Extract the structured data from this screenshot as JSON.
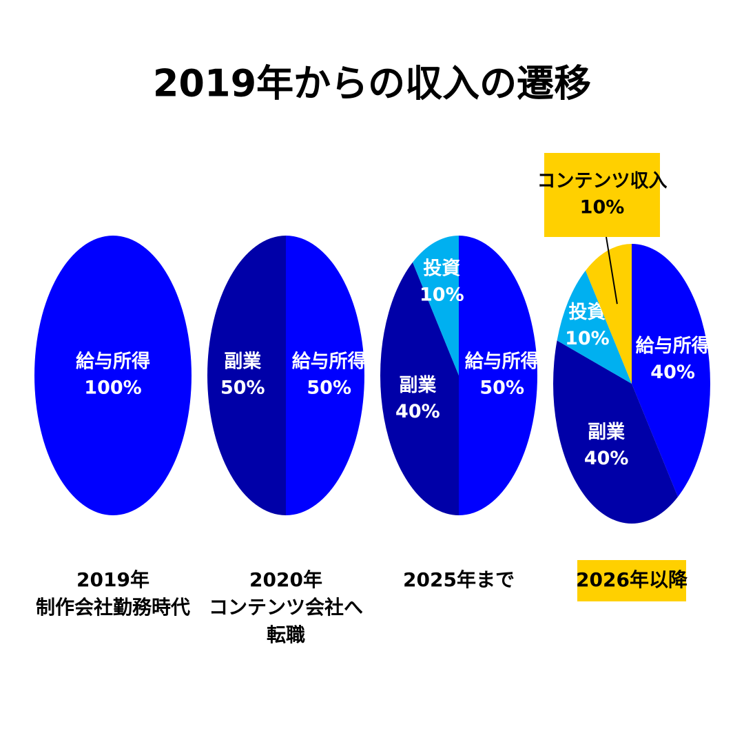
{
  "title": "2019年からの収入の遷移",
  "chart_data": [
    {
      "type": "pie",
      "categories": [
        "給与所得"
      ],
      "values": [
        100
      ],
      "value_labels": [
        "100%"
      ],
      "colors": [
        "#0000ff"
      ],
      "caption": [
        "2019年",
        "制作会社勤務時代"
      ]
    },
    {
      "type": "pie",
      "categories": [
        "給与所得",
        "副業"
      ],
      "values": [
        50,
        50
      ],
      "value_labels": [
        "50%",
        "50%"
      ],
      "colors": [
        "#0000ff",
        "#0000a8"
      ],
      "caption": [
        "2020年",
        "コンテンツ会社へ",
        "転職"
      ]
    },
    {
      "type": "pie",
      "categories": [
        "給与所得",
        "副業",
        "投資"
      ],
      "values": [
        50,
        40,
        10
      ],
      "value_labels": [
        "50%",
        "40%",
        "10%"
      ],
      "colors": [
        "#0000ff",
        "#0000a8",
        "#00b0f0"
      ],
      "caption": [
        "2025年まで"
      ]
    },
    {
      "type": "pie",
      "categories": [
        "給与所得",
        "副業",
        "投資",
        "コンテンツ収入"
      ],
      "values": [
        40,
        40,
        10,
        10
      ],
      "value_labels": [
        "40%",
        "40%",
        "10%",
        "10%"
      ],
      "colors": [
        "#0000ff",
        "#0000a8",
        "#00b0f0",
        "#ffd000"
      ],
      "caption": [
        "2026年以降"
      ],
      "caption_color": "#ffd000"
    }
  ]
}
